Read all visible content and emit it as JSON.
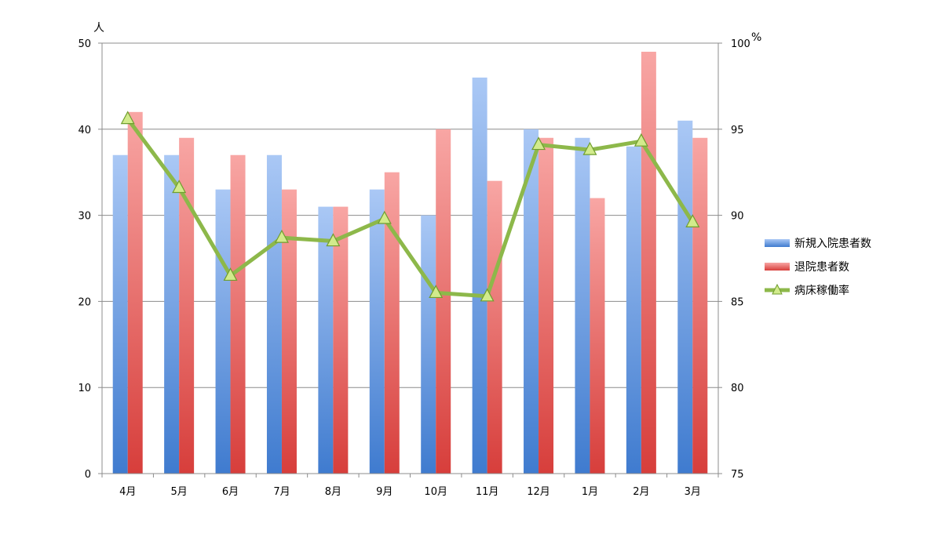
{
  "chart_data": {
    "type": "bar",
    "categories": [
      "4月",
      "5月",
      "6月",
      "7月",
      "8月",
      "9月",
      "10月",
      "11月",
      "12月",
      "1月",
      "2月",
      "3月"
    ],
    "series": [
      {
        "name": "新規入院患者数",
        "type": "bar",
        "axis": "left",
        "color": "#4a86d6",
        "values": [
          37,
          37,
          33,
          37,
          31,
          33,
          30,
          46,
          40,
          39,
          38,
          41
        ]
      },
      {
        "name": "退院患者数",
        "type": "bar",
        "axis": "left",
        "color": "#e55a55",
        "values": [
          42,
          39,
          37,
          33,
          31,
          35,
          40,
          34,
          39,
          32,
          49,
          39
        ]
      },
      {
        "name": "病床稼働率",
        "type": "line",
        "axis": "right",
        "color": "#8db84a",
        "marker": "triangle",
        "values": [
          95.6,
          91.6,
          86.5,
          88.7,
          88.5,
          89.8,
          85.5,
          85.3,
          94.1,
          93.8,
          94.3,
          89.6
        ]
      }
    ],
    "y_left": {
      "unit": "人",
      "ticks": [
        "0",
        "10",
        "20",
        "30",
        "40",
        "50"
      ],
      "range": [
        0,
        50
      ]
    },
    "y_right": {
      "unit": "%",
      "ticks": [
        "75",
        "80",
        "85",
        "90",
        "95",
        "100"
      ],
      "range": [
        75,
        100
      ]
    },
    "legend_position": "right",
    "grid": true
  }
}
